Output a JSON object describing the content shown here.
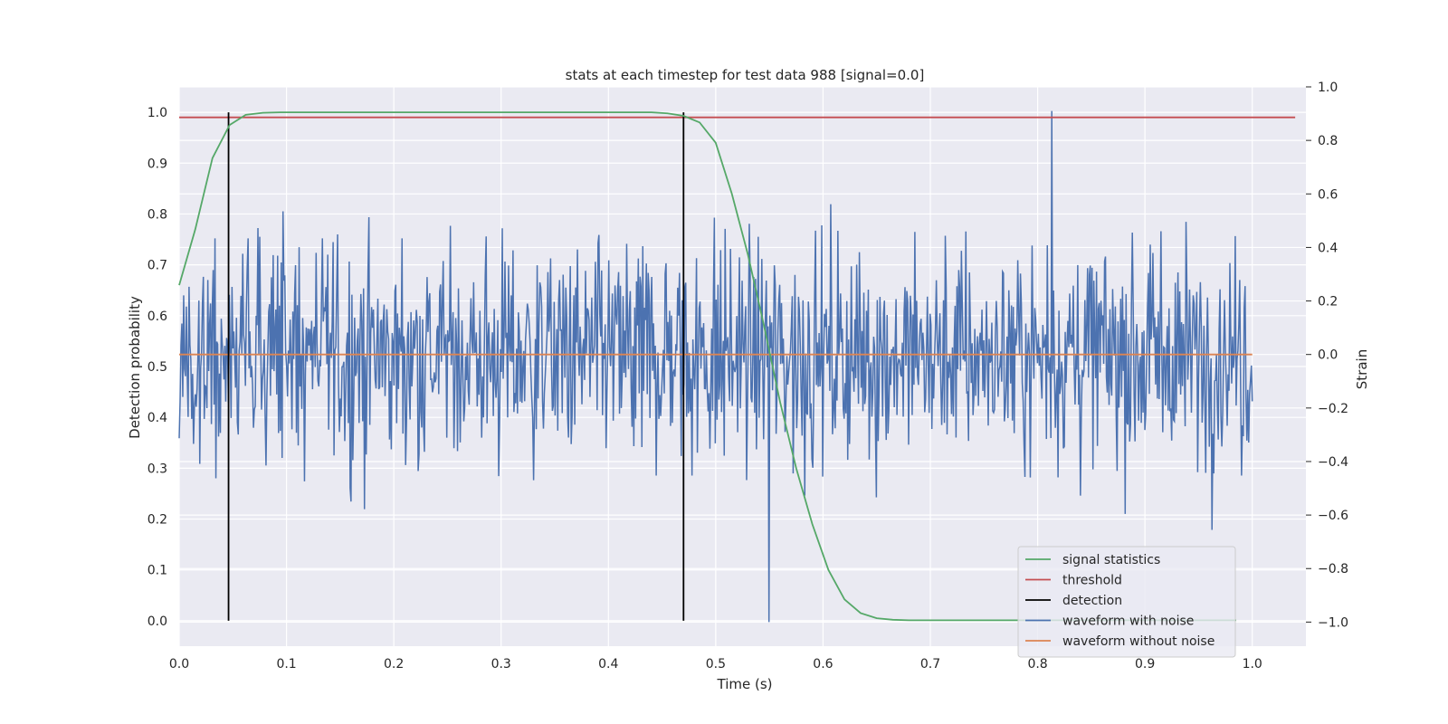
{
  "chart_data": {
    "type": "line",
    "title": "stats at each timestep for test data 988 [signal=0.0]",
    "xlabel": "Time (s)",
    "ylabel_left": "Detection probability",
    "ylabel_right": "Strain",
    "xlim": [
      0.0,
      1.05
    ],
    "ylim_left": [
      -0.05,
      1.05
    ],
    "ylim_right": [
      -1.09,
      1.0
    ],
    "x_ticks": [
      "0.0",
      "0.1",
      "0.2",
      "0.3",
      "0.4",
      "0.5",
      "0.6",
      "0.7",
      "0.8",
      "0.9",
      "1.0"
    ],
    "y_left_ticks": [
      "0.0",
      "0.1",
      "0.2",
      "0.3",
      "0.4",
      "0.5",
      "0.6",
      "0.7",
      "0.8",
      "0.9",
      "1.0"
    ],
    "y_right_ticks": [
      "−1.0",
      "−0.8",
      "−0.6",
      "−0.4",
      "−0.2",
      "0.0",
      "0.2",
      "0.4",
      "0.6",
      "0.8",
      "1.0"
    ],
    "grid": true,
    "legend_position": "lower-right",
    "series": [
      {
        "name": "signal statistics",
        "axis": "left",
        "color": "#55a868",
        "x": [
          0.0,
          0.015,
          0.031,
          0.047,
          0.062,
          0.078,
          0.094,
          0.109,
          0.2,
          0.3,
          0.4,
          0.44,
          0.455,
          0.47,
          0.485,
          0.5,
          0.515,
          0.53,
          0.545,
          0.56,
          0.575,
          0.59,
          0.605,
          0.62,
          0.635,
          0.65,
          0.665,
          0.68,
          0.7,
          0.8,
          0.9,
          0.985
        ],
        "y": [
          0.66,
          0.77,
          0.91,
          0.975,
          0.995,
          0.999,
          1.0,
          1.0,
          1.0,
          1.0,
          1.0,
          1.0,
          0.998,
          0.993,
          0.98,
          0.94,
          0.84,
          0.72,
          0.58,
          0.43,
          0.3,
          0.19,
          0.1,
          0.042,
          0.015,
          0.005,
          0.002,
          0.001,
          0.001,
          0.001,
          0.001,
          0.001
        ]
      },
      {
        "name": "threshold",
        "axis": "left",
        "color": "#c44e52",
        "x": [
          0.0,
          1.04
        ],
        "y": [
          0.99,
          0.99
        ]
      },
      {
        "name": "detection",
        "axis": "left",
        "color": "#000000",
        "lines_x": [
          0.046,
          0.47
        ],
        "y_range": [
          0.0,
          1.0
        ]
      },
      {
        "name": "waveform with noise",
        "axis": "right",
        "color": "#4c72b0",
        "x_range": [
          0.0,
          1.0
        ],
        "n_points": 1200,
        "y_extremes": {
          "max": 0.91,
          "min": -1.0
        }
      },
      {
        "name": "waveform without noise",
        "axis": "right",
        "color": "#dd8452",
        "x": [
          0.0,
          1.0
        ],
        "y": [
          0.0,
          0.0
        ]
      }
    ]
  }
}
